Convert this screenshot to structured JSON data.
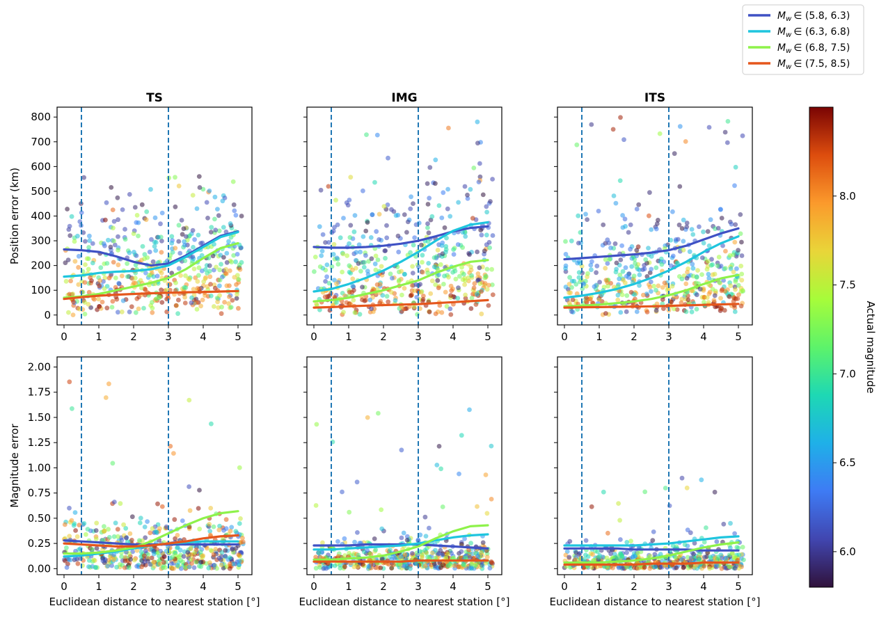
{
  "figure": {
    "colorbar_label": "Actual magnitude",
    "colorbar_ticks": [
      "6.0",
      "6.5",
      "7.0",
      "7.5",
      "8.0"
    ],
    "colorbar_tick_values": [
      6.0,
      6.5,
      7.0,
      7.5,
      8.0
    ],
    "colorbar_range": [
      5.8,
      8.5
    ],
    "legend": {
      "position": "top-right",
      "entries": [
        {
          "label_prefix": "M",
          "label_sub": "w",
          "label_range": "∈ (5.8, 6.3)",
          "color": "#3f51c4"
        },
        {
          "label_prefix": "M",
          "label_sub": "w",
          "label_range": "∈ (6.3, 6.8)",
          "color": "#1fc5de"
        },
        {
          "label_prefix": "M",
          "label_sub": "w",
          "label_range": "∈ (6.8, 7.5)",
          "color": "#8ef24a"
        },
        {
          "label_prefix": "M",
          "label_sub": "w",
          "label_range": "∈ (7.5, 8.5)",
          "color": "#e5561c"
        }
      ]
    }
  },
  "chart_data": [
    {
      "type": "scatter",
      "title": "TS",
      "ylabel": "Position error (km)",
      "xlabel": "",
      "xlim": [
        -0.2,
        5.4
      ],
      "ylim": [
        -40,
        840
      ],
      "xticks": [
        "0",
        "1",
        "2",
        "3",
        "4",
        "5"
      ],
      "yticks": [
        "0",
        "100",
        "200",
        "300",
        "400",
        "500",
        "600",
        "700",
        "800"
      ],
      "vlines": [
        0.5,
        3
      ],
      "series": [
        {
          "x": [
            0,
            0.5,
            1,
            1.5,
            2,
            2.5,
            3,
            3.5,
            4,
            4.5,
            5
          ],
          "y": [
            265,
            262,
            255,
            237,
            215,
            200,
            208,
            240,
            280,
            320,
            338
          ]
        },
        {
          "x": [
            0,
            0.5,
            1,
            1.5,
            2,
            2.5,
            3,
            3.5,
            4,
            4.5,
            5
          ],
          "y": [
            155,
            160,
            170,
            175,
            178,
            185,
            200,
            235,
            275,
            315,
            335
          ]
        },
        {
          "x": [
            0,
            0.5,
            1,
            1.5,
            2,
            2.5,
            3,
            3.5,
            4,
            4.5,
            5
          ],
          "y": [
            70,
            75,
            85,
            100,
            115,
            130,
            150,
            185,
            230,
            270,
            290
          ]
        },
        {
          "x": [
            0,
            0.5,
            1,
            1.5,
            2,
            2.5,
            3,
            3.5,
            4,
            4.5,
            5
          ],
          "y": [
            65,
            72,
            78,
            82,
            85,
            88,
            90,
            92,
            93,
            95,
            97
          ]
        }
      ],
      "scatter_profile": {
        "low_mag_center": 270,
        "high_mag_center": 60,
        "max": 560
      }
    },
    {
      "type": "scatter",
      "title": "IMG",
      "ylabel": "",
      "xlabel": "",
      "xlim": [
        -0.2,
        5.4
      ],
      "ylim": [
        -40,
        840
      ],
      "xticks": [
        "0",
        "1",
        "2",
        "3",
        "4",
        "5"
      ],
      "yticks": [],
      "vlines": [
        0.5,
        3
      ],
      "series": [
        {
          "x": [
            0,
            0.5,
            1,
            1.5,
            2,
            2.5,
            3,
            3.5,
            4,
            4.5,
            5
          ],
          "y": [
            275,
            272,
            272,
            275,
            280,
            288,
            300,
            318,
            338,
            352,
            358
          ]
        },
        {
          "x": [
            0,
            0.5,
            1,
            1.5,
            2,
            2.5,
            3,
            3.5,
            4,
            4.5,
            5
          ],
          "y": [
            95,
            105,
            125,
            150,
            180,
            215,
            255,
            300,
            340,
            365,
            375
          ]
        },
        {
          "x": [
            0,
            0.5,
            1,
            1.5,
            2,
            2.5,
            3,
            3.5,
            4,
            4.5,
            5
          ],
          "y": [
            55,
            60,
            70,
            85,
            100,
            120,
            140,
            170,
            195,
            215,
            222
          ]
        },
        {
          "x": [
            0,
            0.5,
            1,
            1.5,
            2,
            2.5,
            3,
            3.5,
            4,
            4.5,
            5
          ],
          "y": [
            30,
            32,
            35,
            38,
            40,
            42,
            44,
            48,
            52,
            56,
            60
          ]
        }
      ],
      "scatter_profile": {
        "low_mag_center": 280,
        "high_mag_center": 40,
        "max": 790
      }
    },
    {
      "type": "scatter",
      "title": "ITS",
      "ylabel": "",
      "xlabel": "",
      "xlim": [
        -0.2,
        5.4
      ],
      "ylim": [
        -40,
        840
      ],
      "xticks": [
        "0",
        "1",
        "2",
        "3",
        "4",
        "5"
      ],
      "yticks": [],
      "vlines": [
        0.5,
        3
      ],
      "series": [
        {
          "x": [
            0,
            0.5,
            1,
            1.5,
            2,
            2.5,
            3,
            3.5,
            4,
            4.5,
            5
          ],
          "y": [
            225,
            230,
            235,
            240,
            245,
            252,
            262,
            280,
            305,
            330,
            350
          ]
        },
        {
          "x": [
            0,
            0.5,
            1,
            1.5,
            2,
            2.5,
            3,
            3.5,
            4,
            4.5,
            5
          ],
          "y": [
            70,
            78,
            90,
            105,
            125,
            150,
            180,
            215,
            255,
            290,
            318
          ]
        },
        {
          "x": [
            0,
            0.5,
            1,
            1.5,
            2,
            2.5,
            3,
            3.5,
            4,
            4.5,
            5
          ],
          "y": [
            35,
            38,
            42,
            48,
            55,
            65,
            80,
            100,
            125,
            148,
            162
          ]
        },
        {
          "x": [
            0,
            0.5,
            1,
            1.5,
            2,
            2.5,
            3,
            3.5,
            4,
            4.5,
            5
          ],
          "y": [
            30,
            31,
            32,
            33,
            34,
            35,
            37,
            39,
            41,
            43,
            45
          ]
        }
      ],
      "scatter_profile": {
        "low_mag_center": 240,
        "high_mag_center": 35,
        "max": 800
      }
    },
    {
      "type": "scatter",
      "title": "",
      "ylabel": "Magnitude error",
      "xlabel": "Euclidean distance to nearest station [°]",
      "xlim": [
        -0.2,
        5.4
      ],
      "ylim": [
        -0.06,
        2.1
      ],
      "xticks": [
        "0",
        "1",
        "2",
        "3",
        "4",
        "5"
      ],
      "yticks": [
        "0.00",
        "0.25",
        "0.50",
        "0.75",
        "1.00",
        "1.25",
        "1.50",
        "1.75",
        "2.00"
      ],
      "vlines": [
        0.5,
        3
      ],
      "series": [
        {
          "x": [
            0,
            0.5,
            1,
            1.5,
            2,
            2.5,
            3,
            3.5,
            4,
            4.5,
            5
          ],
          "y": [
            0.28,
            0.27,
            0.26,
            0.25,
            0.24,
            0.24,
            0.24,
            0.24,
            0.24,
            0.24,
            0.24
          ]
        },
        {
          "x": [
            0,
            0.5,
            1,
            1.5,
            2,
            2.5,
            3,
            3.5,
            4,
            4.5,
            5
          ],
          "y": [
            0.12,
            0.13,
            0.15,
            0.17,
            0.2,
            0.23,
            0.25,
            0.26,
            0.27,
            0.27,
            0.27
          ]
        },
        {
          "x": [
            0,
            0.5,
            1,
            1.5,
            2,
            2.5,
            3,
            3.5,
            4,
            4.5,
            5
          ],
          "y": [
            0.15,
            0.15,
            0.16,
            0.18,
            0.21,
            0.27,
            0.35,
            0.43,
            0.5,
            0.55,
            0.57
          ]
        },
        {
          "x": [
            0,
            0.5,
            1,
            1.5,
            2,
            2.5,
            3,
            3.5,
            4,
            4.5,
            5
          ],
          "y": [
            0.25,
            0.24,
            0.23,
            0.22,
            0.22,
            0.23,
            0.25,
            0.27,
            0.3,
            0.32,
            0.33
          ]
        }
      ],
      "scatter_profile": {
        "low_mag_center": 0.25,
        "high_mag_center": 0.3,
        "max": 1.99
      }
    },
    {
      "type": "scatter",
      "title": "",
      "ylabel": "",
      "xlabel": "Euclidean distance to nearest station [°]",
      "xlim": [
        -0.2,
        5.4
      ],
      "ylim": [
        -0.06,
        2.1
      ],
      "xticks": [
        "0",
        "1",
        "2",
        "3",
        "4",
        "5"
      ],
      "yticks": [],
      "vlines": [
        0.5,
        3
      ],
      "series": [
        {
          "x": [
            0,
            0.5,
            1,
            1.5,
            2,
            2.5,
            3,
            3.5,
            4,
            4.5,
            5
          ],
          "y": [
            0.23,
            0.23,
            0.23,
            0.24,
            0.24,
            0.24,
            0.24,
            0.23,
            0.22,
            0.21,
            0.2
          ]
        },
        {
          "x": [
            0,
            0.5,
            1,
            1.5,
            2,
            2.5,
            3,
            3.5,
            4,
            4.5,
            5
          ],
          "y": [
            0.19,
            0.19,
            0.2,
            0.21,
            0.22,
            0.23,
            0.25,
            0.28,
            0.31,
            0.33,
            0.34
          ]
        },
        {
          "x": [
            0,
            0.5,
            1,
            1.5,
            2,
            2.5,
            3,
            3.5,
            4,
            4.5,
            5
          ],
          "y": [
            0.09,
            0.09,
            0.1,
            0.11,
            0.13,
            0.17,
            0.22,
            0.3,
            0.37,
            0.42,
            0.43
          ]
        },
        {
          "x": [
            0,
            0.5,
            1,
            1.5,
            2,
            2.5,
            3,
            3.5,
            4,
            4.5,
            5
          ],
          "y": [
            0.07,
            0.07,
            0.07,
            0.07,
            0.07,
            0.07,
            0.08,
            0.08,
            0.08,
            0.08,
            0.08
          ]
        }
      ],
      "scatter_profile": {
        "low_mag_center": 0.22,
        "high_mag_center": 0.08,
        "max": 1.58
      }
    },
    {
      "type": "scatter",
      "title": "",
      "ylabel": "",
      "xlabel": "Euclidean distance to nearest station [°]",
      "xlim": [
        -0.2,
        5.4
      ],
      "ylim": [
        -0.06,
        2.1
      ],
      "xticks": [
        "0",
        "1",
        "2",
        "3",
        "4",
        "5"
      ],
      "yticks": [],
      "vlines": [
        0.5,
        3
      ],
      "series": [
        {
          "x": [
            0,
            0.5,
            1,
            1.5,
            2,
            2.5,
            3,
            3.5,
            4,
            4.5,
            5
          ],
          "y": [
            0.2,
            0.2,
            0.2,
            0.2,
            0.19,
            0.19,
            0.19,
            0.19,
            0.18,
            0.18,
            0.18
          ]
        },
        {
          "x": [
            0,
            0.5,
            1,
            1.5,
            2,
            2.5,
            3,
            3.5,
            4,
            4.5,
            5
          ],
          "y": [
            0.23,
            0.23,
            0.23,
            0.23,
            0.23,
            0.24,
            0.25,
            0.27,
            0.29,
            0.31,
            0.32
          ]
        },
        {
          "x": [
            0,
            0.5,
            1,
            1.5,
            2,
            2.5,
            3,
            3.5,
            4,
            4.5,
            5
          ],
          "y": [
            0.06,
            0.06,
            0.06,
            0.07,
            0.08,
            0.1,
            0.13,
            0.17,
            0.21,
            0.24,
            0.26
          ]
        },
        {
          "x": [
            0,
            0.5,
            1,
            1.5,
            2,
            2.5,
            3,
            3.5,
            4,
            4.5,
            5
          ],
          "y": [
            0.04,
            0.04,
            0.04,
            0.04,
            0.04,
            0.05,
            0.05,
            0.05,
            0.06,
            0.06,
            0.06
          ]
        }
      ],
      "scatter_profile": {
        "low_mag_center": 0.2,
        "high_mag_center": 0.05,
        "max": 0.9
      }
    }
  ]
}
